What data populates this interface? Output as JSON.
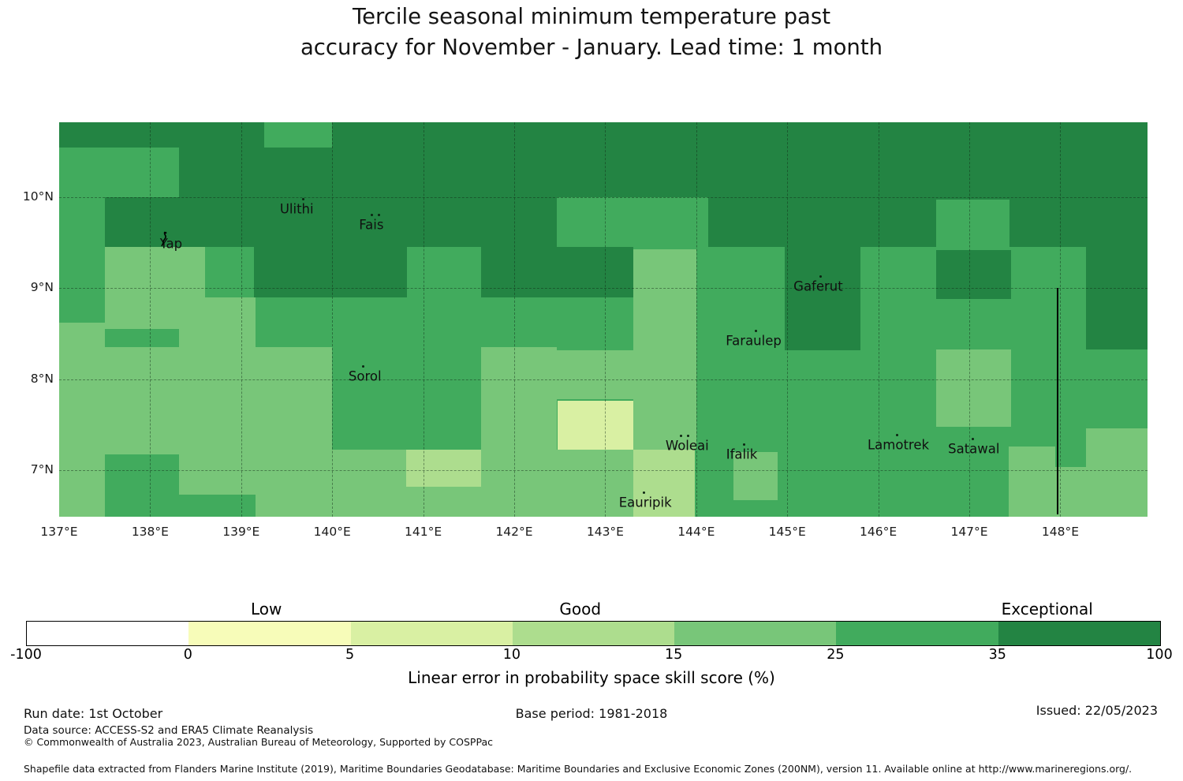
{
  "title": {
    "line1": "Tercile seasonal minimum temperature past",
    "line2": "accuracy for November - January. Lead time: 1 month"
  },
  "chart_data": {
    "type": "heatmap",
    "subtype": "geographic-skill-map",
    "region_shown": "Yap / Federated States of Micronesia area",
    "map_extent": {
      "lon_min": 137.0,
      "lon_max": 148.958,
      "lat_min": 6.487,
      "lat_max": 10.824
    },
    "grid": true,
    "x_ticks": [
      {
        "label": "137°E",
        "lon": 137
      },
      {
        "label": "138°E",
        "lon": 138
      },
      {
        "label": "139°E",
        "lon": 139
      },
      {
        "label": "140°E",
        "lon": 140
      },
      {
        "label": "141°E",
        "lon": 141
      },
      {
        "label": "142°E",
        "lon": 142
      },
      {
        "label": "143°E",
        "lon": 143
      },
      {
        "label": "144°E",
        "lon": 144
      },
      {
        "label": "145°E",
        "lon": 145
      },
      {
        "label": "146°E",
        "lon": 146
      },
      {
        "label": "147°E",
        "lon": 147
      },
      {
        "label": "148°E",
        "lon": 148
      }
    ],
    "y_ticks": [
      {
        "label": "10°N",
        "lat": 10
      },
      {
        "label": "9°N",
        "lat": 9
      },
      {
        "label": "8°N",
        "lat": 8
      },
      {
        "label": "7°N",
        "lat": 7
      }
    ],
    "skill_classes": [
      {
        "id": "-100-0",
        "range": [
          -100,
          0
        ],
        "color": "#ffffff"
      },
      {
        "id": "0-5",
        "range": [
          0,
          5
        ],
        "color": "#f7fcb9"
      },
      {
        "id": "5-10",
        "range": [
          5,
          10
        ],
        "color": "#d9f0a3"
      },
      {
        "id": "10-15",
        "range": [
          10,
          15
        ],
        "color": "#addd8e"
      },
      {
        "id": "15-25",
        "range": [
          15,
          25
        ],
        "color": "#78c679"
      },
      {
        "id": "25-35",
        "range": [
          25,
          35
        ],
        "color": "#41ab5d"
      },
      {
        "id": "35-100",
        "range": [
          35,
          100
        ],
        "color": "#238443"
      }
    ],
    "base_class": "25-35",
    "regions": [
      {
        "lon": [
          137.0,
          148.958
        ],
        "lat": [
          10.0,
          10.824
        ],
        "skill": "35-100"
      },
      {
        "lon": [
          139.25,
          140.0
        ],
        "lat": [
          10.55,
          10.824
        ],
        "skill": "25-35"
      },
      {
        "lon": [
          137.0,
          138.32
        ],
        "lat": [
          10.0,
          10.55
        ],
        "skill": "25-35"
      },
      {
        "lon": [
          137.5,
          142.47
        ],
        "lat": [
          9.45,
          10.0
        ],
        "skill": "35-100"
      },
      {
        "lon": [
          144.13,
          148.958
        ],
        "lat": [
          9.45,
          10.0
        ],
        "skill": "35-100"
      },
      {
        "lon": [
          146.64,
          147.44
        ],
        "lat": [
          9.42,
          9.97
        ],
        "skill": "25-35"
      },
      {
        "lon": [
          144.97,
          145.8
        ],
        "lat": [
          8.32,
          9.45
        ],
        "skill": "35-100"
      },
      {
        "lon": [
          146.64,
          147.46
        ],
        "lat": [
          8.88,
          9.42
        ],
        "skill": "35-100"
      },
      {
        "lon": [
          148.28,
          148.958
        ],
        "lat": [
          8.33,
          9.45
        ],
        "skill": "35-100"
      },
      {
        "lon": [
          137.5,
          138.6
        ],
        "lat": [
          8.55,
          9.45
        ],
        "skill": "15-25"
      },
      {
        "lon": [
          139.14,
          140.82
        ],
        "lat": [
          8.9,
          9.45
        ],
        "skill": "35-100"
      },
      {
        "lon": [
          141.64,
          143.31
        ],
        "lat": [
          8.9,
          9.45
        ],
        "skill": "35-100"
      },
      {
        "lon": [
          143.31,
          144.0
        ],
        "lat": [
          7.22,
          9.43
        ],
        "skill": "15-25"
      },
      {
        "lon": [
          137.0,
          137.5
        ],
        "lat": [
          8.13,
          8.62
        ],
        "skill": "15-25"
      },
      {
        "lon": [
          138.32,
          139.16
        ],
        "lat": [
          8.13,
          8.9
        ],
        "skill": "15-25"
      },
      {
        "lon": [
          137.0,
          142.47
        ],
        "lat": [
          6.487,
          8.35
        ],
        "skill": "15-25"
      },
      {
        "lon": [
          140.0,
          141.64
        ],
        "lat": [
          7.22,
          8.35
        ],
        "skill": "25-35"
      },
      {
        "lon": [
          140.81,
          141.64
        ],
        "lat": [
          6.82,
          7.22
        ],
        "skill": "10-15"
      },
      {
        "lon": [
          142.48,
          143.31
        ],
        "lat": [
          7.22,
          7.76
        ],
        "skill": "5-10"
      },
      {
        "lon": [
          142.47,
          143.31
        ],
        "lat": [
          7.78,
          8.32
        ],
        "skill": "15-25"
      },
      {
        "lon": [
          143.31,
          143.98
        ],
        "lat": [
          6.487,
          7.22
        ],
        "skill": "10-15"
      },
      {
        "lon": [
          137.5,
          138.32
        ],
        "lat": [
          6.487,
          7.17
        ],
        "skill": "25-35"
      },
      {
        "lon": [
          138.32,
          139.16
        ],
        "lat": [
          6.487,
          6.73
        ],
        "skill": "25-35"
      },
      {
        "lon": [
          146.64,
          147.46
        ],
        "lat": [
          7.48,
          8.33
        ],
        "skill": "15-25"
      },
      {
        "lon": [
          144.41,
          144.89
        ],
        "lat": [
          6.67,
          7.2
        ],
        "skill": "15-25"
      },
      {
        "lon": [
          148.28,
          148.958
        ],
        "lat": [
          6.9,
          7.46
        ],
        "skill": "15-25"
      },
      {
        "lon": [
          147.44,
          148.958
        ],
        "lat": [
          6.487,
          7.03
        ],
        "skill": "15-25"
      },
      {
        "lon": [
          142.47,
          143.31
        ],
        "lat": [
          6.487,
          7.22
        ],
        "skill": "15-25"
      },
      {
        "lon": [
          147.43,
          147.94
        ],
        "lat": [
          6.487,
          7.26
        ],
        "skill": "15-25"
      }
    ],
    "islands": [
      {
        "name": "Yap",
        "lon": 138.23,
        "lat": 9.49,
        "marker": "islet",
        "dot_dx": -14
      },
      {
        "name": "Ulithi",
        "lon": 139.61,
        "lat": 9.87,
        "marker": "dot",
        "dot_dx": 8
      },
      {
        "name": "Fais",
        "lon": 140.43,
        "lat": 9.7,
        "marker": "dot2",
        "dot_dx": 0
      },
      {
        "name": "Sorol",
        "lon": 140.36,
        "lat": 8.03,
        "marker": "dot",
        "dot_dx": -3
      },
      {
        "name": "Gaferut",
        "lon": 145.34,
        "lat": 9.02,
        "marker": "dot",
        "dot_dx": 3
      },
      {
        "name": "Faraulep",
        "lon": 144.63,
        "lat": 8.42,
        "marker": "dot",
        "dot_dx": 2
      },
      {
        "name": "Woleai",
        "lon": 143.9,
        "lat": 7.27,
        "marker": "dot2",
        "dot_dx": -8
      },
      {
        "name": "Ifalik",
        "lon": 144.5,
        "lat": 7.17,
        "marker": "dot",
        "dot_dx": 2
      },
      {
        "name": "Lamotrek",
        "lon": 146.22,
        "lat": 7.28,
        "marker": "dot",
        "dot_dx": -2
      },
      {
        "name": "Satawal",
        "lon": 147.05,
        "lat": 7.23,
        "marker": "dot",
        "dot_dx": -2
      },
      {
        "name": "Eauripik",
        "lon": 143.44,
        "lat": 6.64,
        "marker": "dot",
        "dot_dx": -2
      }
    ],
    "eez_boundary": {
      "lon": 147.96,
      "lat_top": 9.0,
      "lat_bottom": 6.51
    },
    "colorbar": {
      "ticks": [
        -100,
        0,
        5,
        10,
        15,
        25,
        35,
        100
      ],
      "segment_colors": [
        "#ffffff",
        "#f7fcb9",
        "#d9f0a3",
        "#addd8e",
        "#78c679",
        "#41ab5d",
        "#238443"
      ],
      "category_labels": [
        {
          "text": "Low",
          "pos": 0.212
        },
        {
          "text": "Good",
          "pos": 0.489
        },
        {
          "text": "Exceptional",
          "pos": 0.901
        }
      ],
      "axis_label": "Linear error in probability space skill score (%)"
    }
  },
  "footer": {
    "run_date": "Run date: 1st October",
    "data_source": "Data source: ACCESS-S2 and ERA5 Climate Reanalysis",
    "copyright": "© Commonwealth of Australia 2023, Australian Bureau of Meteorology, Supported by COSPPac",
    "base_period": "Base period: 1981-2018",
    "issued": "Issued: 22/05/2023",
    "shapefile_note": "Shapefile data extracted from Flanders Marine Institute (2019), Maritime Boundaries Geodatabase: Maritime Boundaries and Exclusive Economic Zones (200NM), version 11. Available online at http://www.marineregions.org/."
  }
}
